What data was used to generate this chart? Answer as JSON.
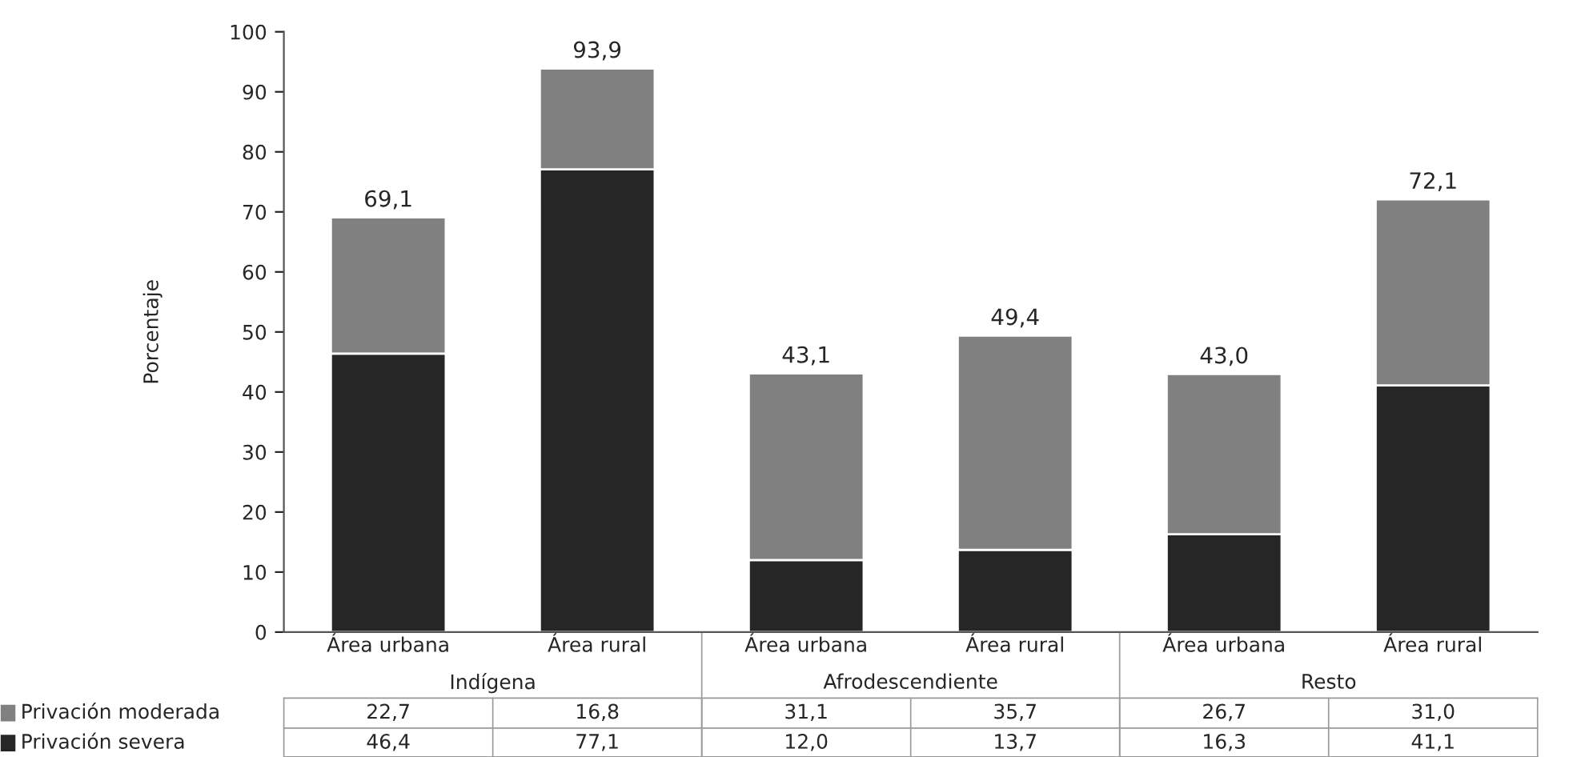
{
  "chart_data": {
    "type": "bar",
    "stacked": true,
    "ylabel": "Porcentaje",
    "categories": [
      "Área urbana",
      "Área rural",
      "Área urbana",
      "Área rural",
      "Área urbana",
      "Área rural"
    ],
    "annotations": [
      "Indígena",
      "Afrodescendiente",
      "Resto"
    ],
    "series": [
      {
        "name": "Privación severa",
        "color": "#262626",
        "values": [
          46.4,
          77.1,
          12.0,
          13.7,
          16.3,
          41.1
        ],
        "value_labels": [
          "46,4",
          "77,1",
          "12,0",
          "13,7",
          "16,3",
          "41,1"
        ]
      },
      {
        "name": "Privación moderada",
        "color": "#808080",
        "values": [
          22.7,
          16.8,
          31.1,
          35.7,
          26.7,
          31.0
        ],
        "value_labels": [
          "22,7",
          "16,8",
          "31,1",
          "35,7",
          "26,7",
          "31,0"
        ]
      }
    ],
    "totals": [
      "69,1",
      "93,9",
      "43,1",
      "49,4",
      "43,0",
      "72,1"
    ],
    "ylim": [
      0,
      100
    ],
    "yticks": [
      0,
      10,
      20,
      30,
      40,
      50,
      60,
      70,
      80,
      90,
      100
    ],
    "grid": false,
    "legend": "bottom left"
  }
}
